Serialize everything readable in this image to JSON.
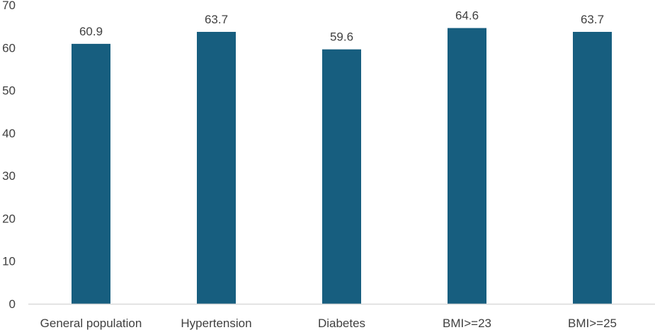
{
  "chart_data": {
    "type": "bar",
    "categories": [
      "General population",
      "Hypertension",
      "Diabetes",
      "BMI>=23",
      "BMI>=25"
    ],
    "values": [
      60.9,
      63.7,
      59.6,
      64.6,
      63.7
    ],
    "value_labels": [
      "60.9",
      "63.7",
      "59.6",
      "64.6",
      "63.7"
    ],
    "ylim": [
      0,
      70
    ],
    "yticks": [
      0,
      10,
      20,
      30,
      40,
      50,
      60,
      70
    ],
    "title": "",
    "xlabel": "",
    "ylabel": "",
    "grid": false,
    "legend": "none",
    "bar_color": "#175E7F",
    "axis_color": "#D9D9D9",
    "text_color": "#404040"
  }
}
